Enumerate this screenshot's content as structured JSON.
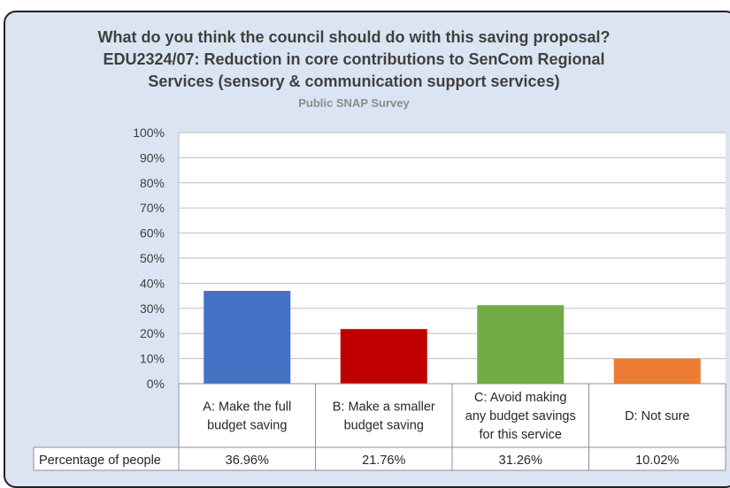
{
  "chart_data": {
    "type": "bar",
    "title_lines": [
      "What do you think the council should do with this saving proposal?",
      "EDU2324/07:  Reduction in core contributions to SenCom Regional",
      "Services (sensory & communication support services)"
    ],
    "subtitle": "Public SNAP Survey",
    "categories": [
      [
        "A:  Make the full",
        "budget saving"
      ],
      [
        "B:  Make a smaller",
        "budget saving"
      ],
      [
        "C:  Avoid making",
        "any budget savings",
        "for this service"
      ],
      [
        "D:  Not sure"
      ]
    ],
    "series": [
      {
        "name": "Percentage of people",
        "values": [
          36.96,
          21.76,
          31.26,
          10.02
        ],
        "value_labels": [
          "36.96%",
          "21.76%",
          "31.26%",
          "10.02%"
        ]
      }
    ],
    "bar_colors": [
      "#4472c4",
      "#c00000",
      "#70ad47",
      "#ed7d31"
    ],
    "y_ticks": [
      "0%",
      "10%",
      "20%",
      "30%",
      "40%",
      "50%",
      "60%",
      "70%",
      "80%",
      "90%",
      "100%"
    ],
    "ylim": [
      0,
      100
    ],
    "grid": true,
    "legend": "data-table-below"
  }
}
